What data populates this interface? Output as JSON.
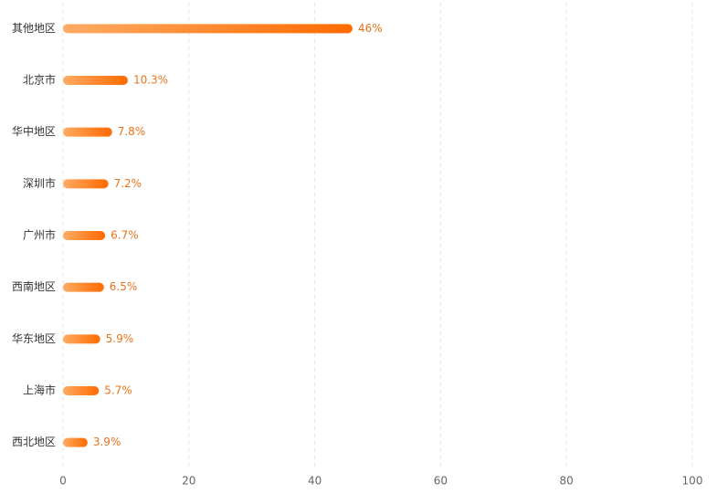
{
  "chart_data": {
    "type": "bar",
    "orientation": "horizontal",
    "categories": [
      "其他地区",
      "北京市",
      "华中地区",
      "深圳市",
      "广州市",
      "西南地区",
      "华东地区",
      "上海市",
      "西北地区"
    ],
    "values": [
      46,
      10.3,
      7.8,
      7.2,
      6.7,
      6.5,
      5.9,
      5.7,
      3.9
    ],
    "value_labels": [
      "46%",
      "10.3%",
      "7.8%",
      "7.2%",
      "6.7%",
      "6.5%",
      "5.9%",
      "5.7%",
      "3.9%"
    ],
    "colors": [
      "#ffab63",
      "#ff6a00"
    ],
    "xlim": [
      0,
      100
    ],
    "xticks": [
      0,
      20,
      40,
      60,
      80,
      100
    ],
    "grid": true
  }
}
